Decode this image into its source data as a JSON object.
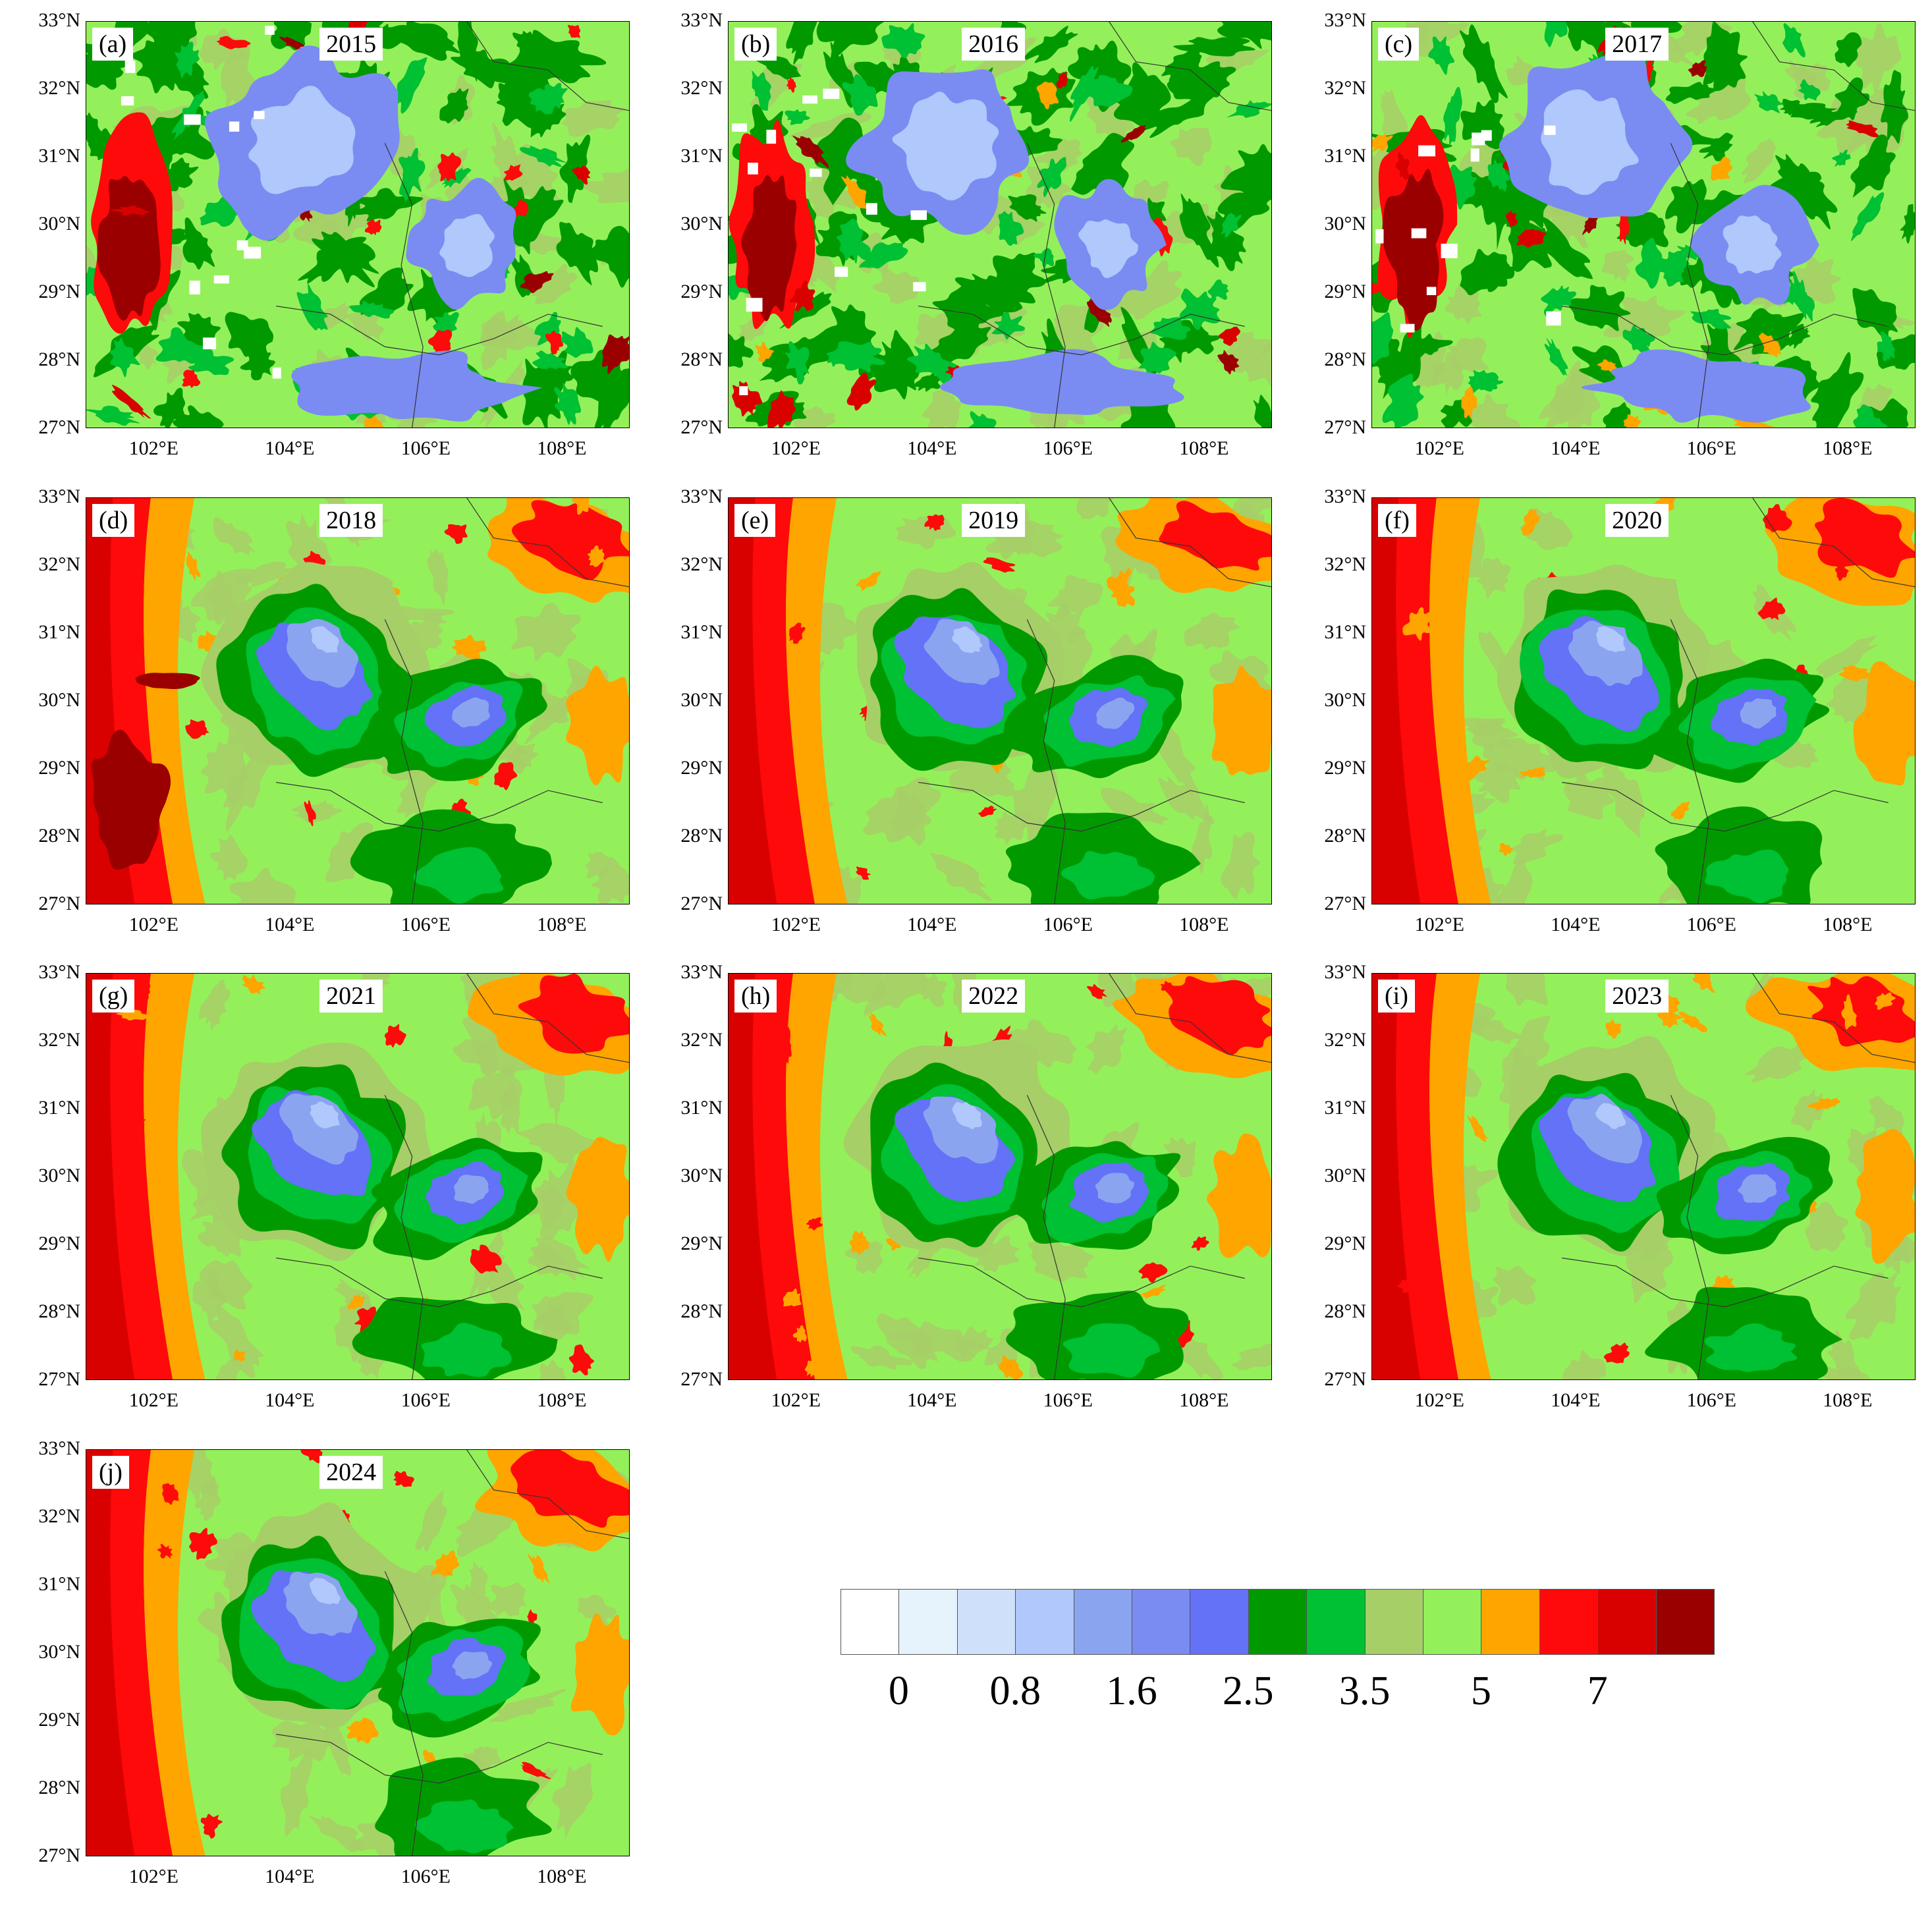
{
  "lat_ticks": [
    "33°N",
    "32°N",
    "31°N",
    "30°N",
    "29°N",
    "28°N",
    "27°N"
  ],
  "lon_ticks": [
    "102°E",
    "104°E",
    "106°E",
    "108°E"
  ],
  "panels": [
    {
      "letter": "(a)",
      "year": "2015",
      "style": "early"
    },
    {
      "letter": "(b)",
      "year": "2016",
      "style": "early"
    },
    {
      "letter": "(c)",
      "year": "2017",
      "style": "early"
    },
    {
      "letter": "(d)",
      "year": "2018",
      "style": "mid"
    },
    {
      "letter": "(e)",
      "year": "2019",
      "style": "late"
    },
    {
      "letter": "(f)",
      "year": "2020",
      "style": "late"
    },
    {
      "letter": "(g)",
      "year": "2021",
      "style": "late"
    },
    {
      "letter": "(h)",
      "year": "2022",
      "style": "late"
    },
    {
      "letter": "(i)",
      "year": "2023",
      "style": "late"
    },
    {
      "letter": "(j)",
      "year": "2024",
      "style": "late"
    }
  ],
  "colorbar": {
    "colors": [
      "#ffffff",
      "#e6f3fc",
      "#cfe0fb",
      "#b0c8fb",
      "#8aa4f0",
      "#7a8cf2",
      "#6372f7",
      "#009a00",
      "#00c033",
      "#a6cf67",
      "#94f05a",
      "#ffa500",
      "#ff0a0a",
      "#d90000",
      "#9a0000"
    ],
    "labels": [
      "0",
      "0.8",
      "1.6",
      "2.5",
      "3.5",
      "5",
      "7"
    ]
  }
}
